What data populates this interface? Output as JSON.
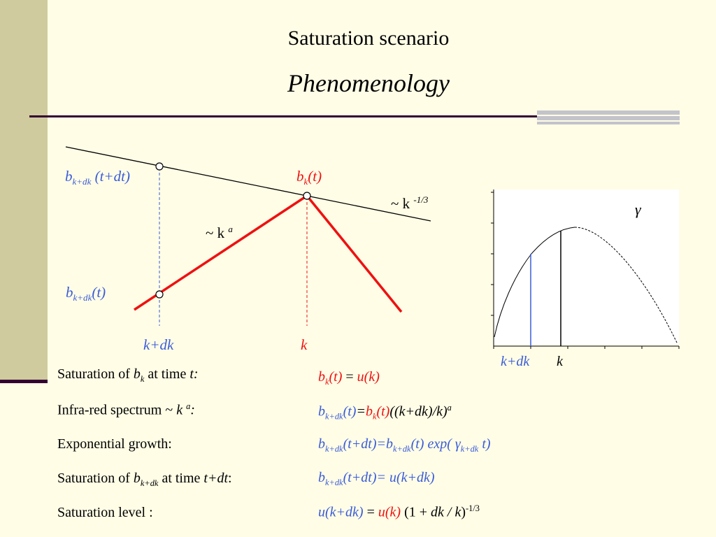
{
  "title": "Saturation scenario",
  "subtitle": "Phenomenology",
  "diagram": {
    "b_sub": "b",
    "k_dk_sub": "k+dk",
    "k_sub": "k",
    "t_dt": " (t+dt)",
    "t": "(t)",
    "slope_k_label": "~ k",
    "slope_k_exp": "-1/3",
    "slope_a_label": "~ k",
    "slope_a_exp": "a",
    "axis_k_dk": "k+dk",
    "axis_k": "k"
  },
  "inset": {
    "gamma_label": "γ",
    "x_k_dk": "k+dk",
    "x_k": "k"
  },
  "equations": [
    {
      "left": [
        "Saturation of ",
        "b",
        "k",
        " at time ",
        "t:"
      ],
      "right": [
        "b",
        "k",
        "(t)",
        " = ",
        "u(k)"
      ]
    },
    {
      "left": [
        "Infra-red spectrum ~ ",
        "k",
        "a",
        ":"
      ],
      "right": [
        "b",
        "k+dk",
        "(t)",
        "=",
        "b",
        "k",
        "(t)",
        "((k+dk)/k)",
        "a"
      ]
    },
    {
      "left": [
        "Exponential growth:"
      ],
      "right": [
        "b",
        "k+dk",
        "(t+dt)=b",
        "k+dk",
        "(t) exp( ",
        "γ",
        "k+dk",
        " t)"
      ]
    },
    {
      "left": [
        "Saturation of ",
        "b",
        "k+dk",
        " at time ",
        "t+dt",
        ":"
      ],
      "right": [
        "b",
        "k+dk",
        "(t+dt)= u(k+dk)"
      ]
    },
    {
      "left": [
        "Saturation level  :"
      ],
      "right": [
        "u(k+dk)",
        " = ",
        "u(k)",
        " (1 + ",
        "dk / k",
        ")",
        "-1/3"
      ]
    }
  ],
  "colors": {
    "blue": "#3a5bd9",
    "red": "#e11",
    "sidebar": "#cfcb9e",
    "rule": "#330033"
  }
}
